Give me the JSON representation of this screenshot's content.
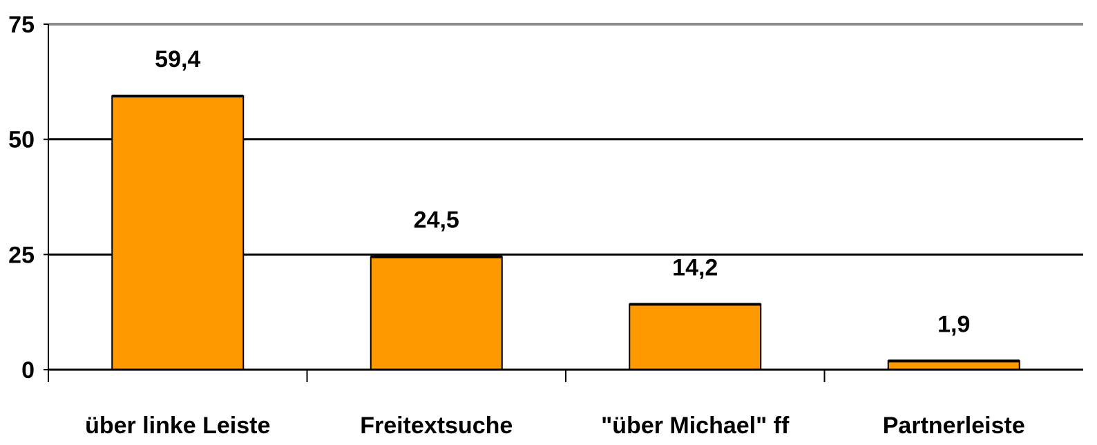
{
  "chart_data": {
    "type": "bar",
    "categories": [
      "über linke Leiste",
      "Freitextsuche",
      "\"über Michael\" ff",
      "Partnerleiste"
    ],
    "values": [
      59.4,
      24.5,
      14.2,
      1.9
    ],
    "value_labels": [
      "59,4",
      "24,5",
      "14,2",
      "1,9"
    ],
    "yticks": [
      0,
      25,
      50,
      75
    ],
    "ylim": [
      0,
      75
    ],
    "grid": true,
    "legend": "none",
    "title": "",
    "xlabel": "",
    "ylabel": ""
  },
  "colors": {
    "bar_fill": "#ff9900",
    "bar_stroke": "#000000",
    "gridline": "#000000",
    "top_gridline": "#8c8c8c",
    "axis": "#000000"
  }
}
